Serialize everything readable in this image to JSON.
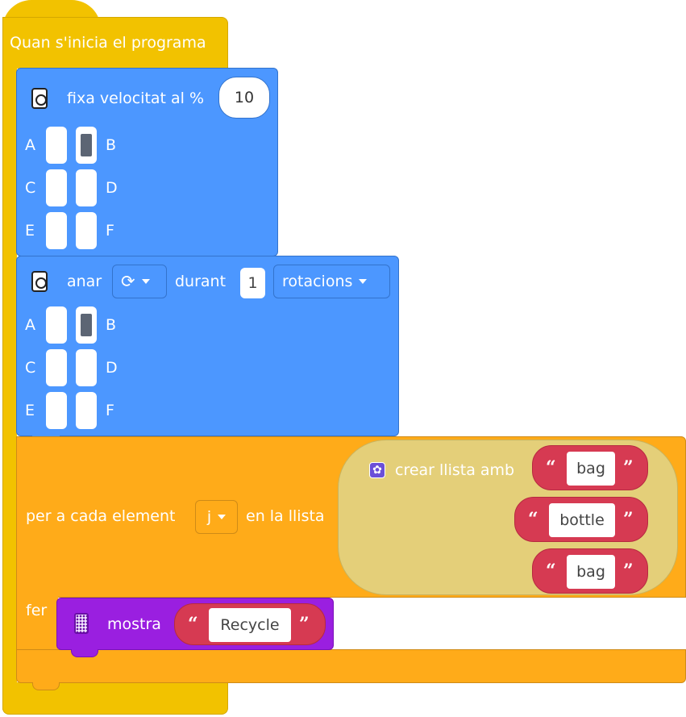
{
  "hat": {
    "label": "Quan s'inicia el programa"
  },
  "set_speed": {
    "label": "fixa velocitat al %",
    "value": "10",
    "ports": [
      {
        "left": "A",
        "right": "B",
        "left_on": false,
        "right_on": true
      },
      {
        "left": "C",
        "right": "D",
        "left_on": false,
        "right_on": false
      },
      {
        "left": "E",
        "right": "F",
        "left_on": false,
        "right_on": false
      }
    ]
  },
  "run_motor": {
    "label": "anar",
    "direction_icon": "clockwise-arrow-icon",
    "duration_label": "durant",
    "amount": "1",
    "unit": "rotacions",
    "ports": [
      {
        "left": "A",
        "right": "B",
        "left_on": false,
        "right_on": true
      },
      {
        "left": "C",
        "right": "D",
        "left_on": false,
        "right_on": false
      },
      {
        "left": "E",
        "right": "F",
        "left_on": false,
        "right_on": false
      }
    ]
  },
  "for_each": {
    "label": "per a cada element",
    "variable": "j",
    "in_label": "en la llista",
    "do_label": "fer",
    "list": {
      "label": "crear llista amb",
      "items": [
        "bag",
        "bottle",
        "bag"
      ]
    }
  },
  "display": {
    "label": "mostra",
    "text": "Recycle"
  },
  "colors": {
    "events": "#f2c200",
    "motor": "#4c97ff",
    "control": "#ffab19",
    "list": "#e4cf79",
    "text": "#d63a52",
    "display": "#9a1fe0"
  }
}
